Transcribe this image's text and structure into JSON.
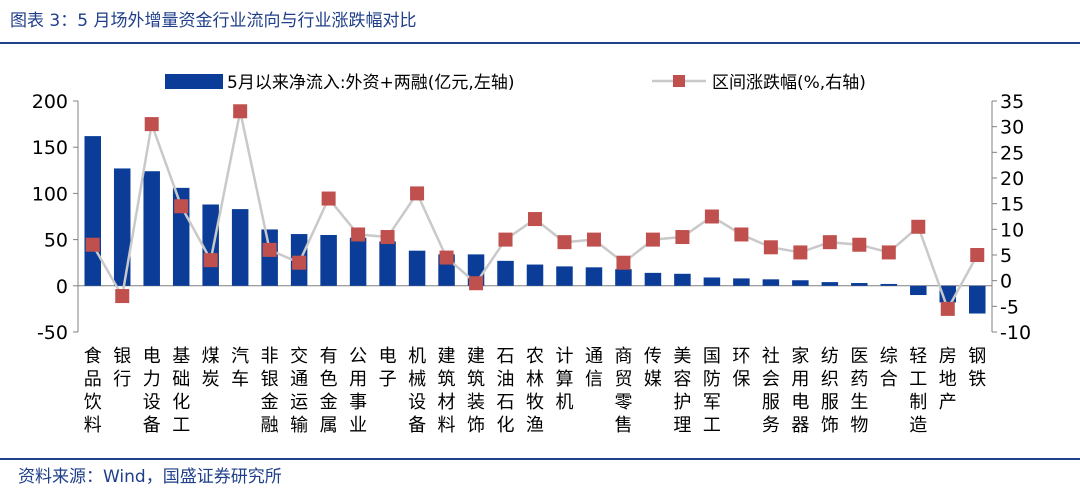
{
  "header": {
    "title": "图表 3：5 月场外增量资金行业流向与行业涨跌幅对比"
  },
  "footer": {
    "source": "资料来源：Wind，国盛证券研究所"
  },
  "colors": {
    "bar": "#0b3d98",
    "line": "#c9c9c9",
    "marker": "#c0504d",
    "frame": "#1f3f8a"
  },
  "chart_data": {
    "type": "bar",
    "categories": [
      "食品饮料",
      "银行",
      "电力设备",
      "基础化工",
      "煤炭",
      "汽车",
      "非银金融",
      "交通运输",
      "有色金属",
      "公用事业",
      "电子",
      "机械设备",
      "建筑材料",
      "建筑装饰",
      "石油石化",
      "农林牧渔",
      "计算机",
      "通信",
      "商贸零售",
      "传媒",
      "美容护理",
      "国防军工",
      "环保",
      "社会服务",
      "家用电器",
      "纺织服饰",
      "医药生物",
      "综合",
      "轻工制造",
      "房地产",
      "钢铁"
    ],
    "series": [
      {
        "name": "5月以来净流入:外资+两融(亿元,左轴)",
        "type": "bar",
        "axis": "left",
        "values": [
          162,
          127,
          124,
          106,
          88,
          83,
          61,
          56,
          55,
          52,
          48,
          38,
          34,
          34,
          27,
          23,
          21,
          20,
          18,
          14,
          13,
          9,
          8,
          7,
          6,
          4,
          3,
          2,
          -10,
          -18,
          -30
        ]
      },
      {
        "name": "区间涨跌幅(%,右轴)",
        "type": "line",
        "axis": "right",
        "values": [
          7,
          -3,
          30.5,
          14.5,
          4,
          33,
          6,
          3.5,
          16,
          9,
          8.5,
          17,
          4.5,
          -0.5,
          8,
          12,
          7.5,
          8,
          3.5,
          8,
          8.5,
          12.5,
          9,
          6.5,
          5.5,
          7.5,
          7,
          5.5,
          10.5,
          -5.5,
          5
        ]
      }
    ],
    "y_left": {
      "min": -50,
      "max": 200,
      "ticks": [
        -50,
        0,
        50,
        100,
        150,
        200
      ]
    },
    "y_right": {
      "min": -10,
      "max": 35,
      "ticks": [
        -10,
        -5,
        0,
        5,
        10,
        15,
        20,
        25,
        30,
        35
      ]
    },
    "legend": {
      "placement": "top"
    },
    "grid": false
  }
}
